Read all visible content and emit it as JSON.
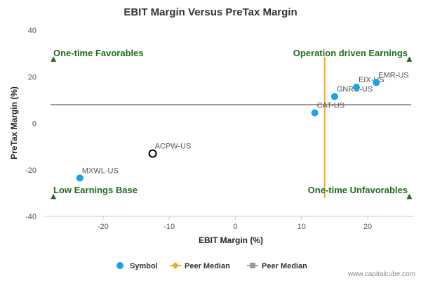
{
  "chart_data": {
    "type": "scatter",
    "title": "EBIT Margin Versus PreTax Margin",
    "xlabel": "EBIT Margin (%)",
    "ylabel": "PreTax Margin (%)",
    "xlim": [
      -29,
      27
    ],
    "ylim": [
      -40,
      40
    ],
    "x_ticks": [
      -20,
      -10,
      0,
      10,
      20
    ],
    "y_ticks": [
      40,
      20,
      0,
      -20,
      -40
    ],
    "grid": false,
    "legend_position": "bottom",
    "points": [
      {
        "name": "MXWL-US",
        "x": -23.5,
        "y": -23.5,
        "highlight": false
      },
      {
        "name": "ACPW-US",
        "x": -12.5,
        "y": -13.0,
        "highlight": true
      },
      {
        "name": "CAT-US",
        "x": 12.0,
        "y": 4.5,
        "highlight": false
      },
      {
        "name": "GNRC-US",
        "x": 15.0,
        "y": 11.5,
        "highlight": false
      },
      {
        "name": "EIX-US",
        "x": 18.3,
        "y": 15.5,
        "highlight": false
      },
      {
        "name": "EMR-US",
        "x": 21.3,
        "y": 17.5,
        "highlight": false
      }
    ],
    "peer_median_x": 13.5,
    "peer_median_y": 8.0,
    "quadrants": {
      "top_left": "One-time Favorables",
      "top_right": "Operation driven Earnings",
      "bottom_left": "Low Earnings Base",
      "bottom_right": "One-time Unfavorables"
    },
    "legend": [
      {
        "label": "Symbol",
        "color": "#1aa3e8",
        "marker": "circle"
      },
      {
        "label": "Peer Median",
        "color": "#f5a623",
        "marker": "diamond-line"
      },
      {
        "label": "Peer Median",
        "color": "#999999",
        "marker": "square-line"
      }
    ],
    "colors": {
      "symbol": "#1aa3e8",
      "median_x": "#f5a623",
      "median_y": "#999999",
      "quadrant_text": "#1f6a1f",
      "highlight_stroke": "#000000"
    }
  },
  "credit": "www.capitalcube.com"
}
